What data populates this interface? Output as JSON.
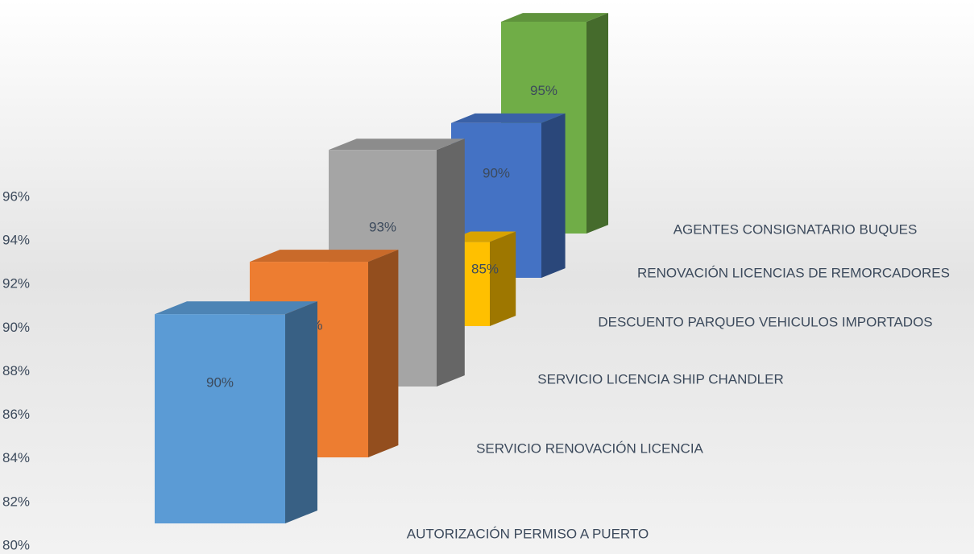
{
  "chart_data": {
    "type": "bar3d",
    "categories": [
      "AUTORIZACIÓN PERMISO A PUERTO",
      "SERVICIO RENOVACIÓN LICENCIA",
      "SERVICIO LICENCIA SHIP CHANDLER",
      "DESCUENTO PARQUEO VEHICULOS IMPORTADOS",
      "RENOVACIÓN LICENCIAS DE REMORCADORES",
      "AGENTES CONSIGNATARIO BUQUES"
    ],
    "values": [
      90,
      90,
      93,
      85,
      90,
      95
    ],
    "value_labels": [
      "90%",
      "90%",
      "93%",
      "85%",
      "90%",
      "95%"
    ],
    "colors": [
      "#5b9bd5",
      "#ed7d31",
      "#a5a5a5",
      "#ffc000",
      "#4472c4",
      "#70ad47"
    ],
    "ylim": [
      80,
      96
    ],
    "yticks": [
      {
        "value": 80,
        "label": "80%"
      },
      {
        "value": 82,
        "label": "82%"
      },
      {
        "value": 84,
        "label": "84%"
      },
      {
        "value": 86,
        "label": "86%"
      },
      {
        "value": 88,
        "label": "88%"
      },
      {
        "value": 90,
        "label": "90%"
      },
      {
        "value": 92,
        "label": "92%"
      },
      {
        "value": 94,
        "label": "94%"
      },
      {
        "value": 96,
        "label": "96%"
      }
    ]
  }
}
